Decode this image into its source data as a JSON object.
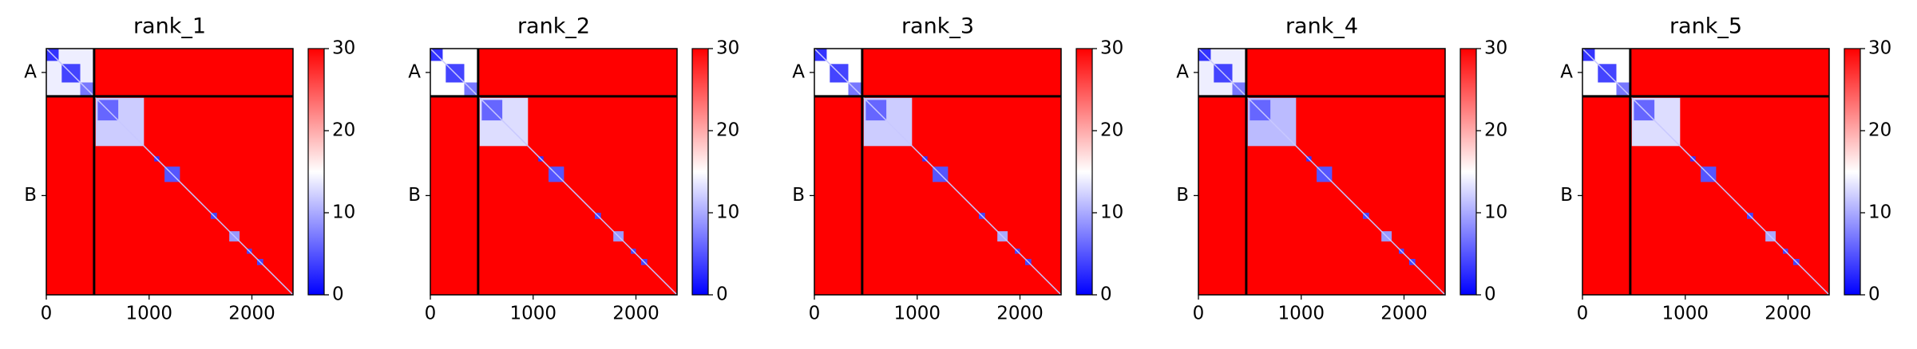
{
  "chart_data": [
    {
      "type": "heatmap",
      "title": "rank_1",
      "cmap": [
        "#0000ff",
        "#ffffff",
        "#ff0000"
      ],
      "background": 30,
      "xlim": [
        0,
        2400
      ],
      "xticks": [
        0,
        1000,
        2000
      ],
      "clim": [
        0,
        30
      ],
      "cticks": [
        0,
        10,
        20,
        30
      ],
      "chains": [
        {
          "label": "A",
          "start": 0,
          "end": 465
        },
        {
          "label": "B",
          "start": 465,
          "end": 2400
        }
      ],
      "blocks": [
        {
          "start": 0,
          "end": 465,
          "value": 14
        },
        {
          "start": 0,
          "end": 120,
          "value": 3
        },
        {
          "start": 150,
          "end": 330,
          "value": 4
        },
        {
          "start": 330,
          "end": 465,
          "value": 7
        },
        {
          "start": 480,
          "end": 950,
          "value": 12
        },
        {
          "start": 500,
          "end": 700,
          "value": 6
        },
        {
          "start": 1050,
          "end": 1100,
          "value": 3
        },
        {
          "start": 1150,
          "end": 1300,
          "value": 5
        },
        {
          "start": 1600,
          "end": 1660,
          "value": 4
        },
        {
          "start": 1780,
          "end": 1880,
          "value": 9
        },
        {
          "start": 1950,
          "end": 2000,
          "value": 4
        },
        {
          "start": 2050,
          "end": 2110,
          "value": 4
        }
      ]
    },
    {
      "type": "heatmap",
      "title": "rank_2",
      "cmap": [
        "#0000ff",
        "#ffffff",
        "#ff0000"
      ],
      "background": 30,
      "xlim": [
        0,
        2400
      ],
      "xticks": [
        0,
        1000,
        2000
      ],
      "clim": [
        0,
        30
      ],
      "cticks": [
        0,
        10,
        20,
        30
      ],
      "chains": [
        {
          "label": "A",
          "start": 0,
          "end": 465
        },
        {
          "label": "B",
          "start": 465,
          "end": 2400
        }
      ],
      "blocks": [
        {
          "start": 0,
          "end": 465,
          "value": 15
        },
        {
          "start": 0,
          "end": 120,
          "value": 3
        },
        {
          "start": 150,
          "end": 330,
          "value": 4
        },
        {
          "start": 330,
          "end": 465,
          "value": 7
        },
        {
          "start": 480,
          "end": 950,
          "value": 13
        },
        {
          "start": 500,
          "end": 700,
          "value": 6
        },
        {
          "start": 1050,
          "end": 1100,
          "value": 3
        },
        {
          "start": 1150,
          "end": 1300,
          "value": 5
        },
        {
          "start": 1600,
          "end": 1660,
          "value": 4
        },
        {
          "start": 1780,
          "end": 1880,
          "value": 9
        },
        {
          "start": 1950,
          "end": 2000,
          "value": 4
        },
        {
          "start": 2050,
          "end": 2110,
          "value": 4
        }
      ]
    },
    {
      "type": "heatmap",
      "title": "rank_3",
      "cmap": [
        "#0000ff",
        "#ffffff",
        "#ff0000"
      ],
      "background": 30,
      "xlim": [
        0,
        2400
      ],
      "xticks": [
        0,
        1000,
        2000
      ],
      "clim": [
        0,
        30
      ],
      "cticks": [
        0,
        10,
        20,
        30
      ],
      "chains": [
        {
          "label": "A",
          "start": 0,
          "end": 465
        },
        {
          "label": "B",
          "start": 465,
          "end": 2400
        }
      ],
      "blocks": [
        {
          "start": 0,
          "end": 465,
          "value": 15
        },
        {
          "start": 0,
          "end": 120,
          "value": 3
        },
        {
          "start": 150,
          "end": 330,
          "value": 4
        },
        {
          "start": 330,
          "end": 465,
          "value": 7
        },
        {
          "start": 480,
          "end": 950,
          "value": 12
        },
        {
          "start": 500,
          "end": 700,
          "value": 6
        },
        {
          "start": 1050,
          "end": 1100,
          "value": 3
        },
        {
          "start": 1150,
          "end": 1300,
          "value": 5
        },
        {
          "start": 1600,
          "end": 1660,
          "value": 4
        },
        {
          "start": 1780,
          "end": 1880,
          "value": 10
        },
        {
          "start": 1950,
          "end": 2000,
          "value": 4
        },
        {
          "start": 2050,
          "end": 2110,
          "value": 4
        }
      ]
    },
    {
      "type": "heatmap",
      "title": "rank_4",
      "cmap": [
        "#0000ff",
        "#ffffff",
        "#ff0000"
      ],
      "background": 30,
      "xlim": [
        0,
        2400
      ],
      "xticks": [
        0,
        1000,
        2000
      ],
      "clim": [
        0,
        30
      ],
      "cticks": [
        0,
        10,
        20,
        30
      ],
      "chains": [
        {
          "label": "A",
          "start": 0,
          "end": 465
        },
        {
          "label": "B",
          "start": 465,
          "end": 2400
        }
      ],
      "blocks": [
        {
          "start": 0,
          "end": 465,
          "value": 14
        },
        {
          "start": 0,
          "end": 120,
          "value": 3
        },
        {
          "start": 150,
          "end": 330,
          "value": 4
        },
        {
          "start": 330,
          "end": 465,
          "value": 7
        },
        {
          "start": 480,
          "end": 950,
          "value": 11
        },
        {
          "start": 500,
          "end": 700,
          "value": 6
        },
        {
          "start": 1050,
          "end": 1100,
          "value": 3
        },
        {
          "start": 1150,
          "end": 1300,
          "value": 5
        },
        {
          "start": 1600,
          "end": 1660,
          "value": 4
        },
        {
          "start": 1780,
          "end": 1880,
          "value": 9
        },
        {
          "start": 1950,
          "end": 2000,
          "value": 4
        },
        {
          "start": 2050,
          "end": 2110,
          "value": 4
        }
      ]
    },
    {
      "type": "heatmap",
      "title": "rank_5",
      "cmap": [
        "#0000ff",
        "#ffffff",
        "#ff0000"
      ],
      "background": 30,
      "xlim": [
        0,
        2400
      ],
      "xticks": [
        0,
        1000,
        2000
      ],
      "clim": [
        0,
        30
      ],
      "cticks": [
        0,
        10,
        20,
        30
      ],
      "chains": [
        {
          "label": "A",
          "start": 0,
          "end": 465
        },
        {
          "label": "B",
          "start": 465,
          "end": 2400
        }
      ],
      "blocks": [
        {
          "start": 0,
          "end": 465,
          "value": 15
        },
        {
          "start": 0,
          "end": 120,
          "value": 3
        },
        {
          "start": 150,
          "end": 330,
          "value": 4
        },
        {
          "start": 330,
          "end": 465,
          "value": 7
        },
        {
          "start": 480,
          "end": 950,
          "value": 13
        },
        {
          "start": 500,
          "end": 700,
          "value": 6
        },
        {
          "start": 1050,
          "end": 1100,
          "value": 3
        },
        {
          "start": 1150,
          "end": 1300,
          "value": 5
        },
        {
          "start": 1600,
          "end": 1660,
          "value": 4
        },
        {
          "start": 1780,
          "end": 1880,
          "value": 10
        },
        {
          "start": 1950,
          "end": 2000,
          "value": 4
        },
        {
          "start": 2050,
          "end": 2110,
          "value": 4
        }
      ]
    }
  ]
}
